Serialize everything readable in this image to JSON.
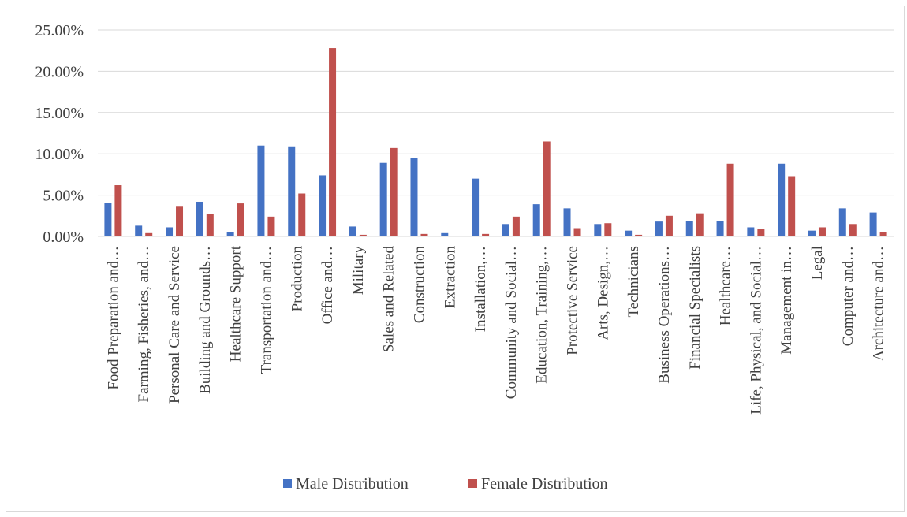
{
  "chart_data": {
    "type": "bar",
    "title": "",
    "xlabel": "",
    "ylabel": "",
    "ylim": [
      0,
      0.25
    ],
    "y_ticks": [
      "0.00%",
      "5.00%",
      "10.00%",
      "15.00%",
      "20.00%",
      "25.00%"
    ],
    "grid": true,
    "legend_position": "bottom",
    "categories": [
      "Food Preparation and…",
      "Farming, Fisheries, and…",
      "Personal Care and Service",
      "Building and Grounds…",
      "Healthcare Support",
      "Transportation and…",
      "Production",
      "Office and…",
      "Military",
      "Sales and Related",
      "Construction",
      "Extraction",
      "Installation,…",
      "Community and Social…",
      "Education, Training,…",
      "Protective Service",
      "Arts, Design,…",
      "Technicians",
      "Business Operations…",
      "Financial Specialists",
      "Healthcare…",
      "Life, Physical, and Social…",
      "Management in…",
      "Legal",
      "Computer and…",
      "Architecture and…"
    ],
    "series": [
      {
        "name": "Male Distribution",
        "color": "#4472C4",
        "values": [
          0.041,
          0.013,
          0.011,
          0.042,
          0.005,
          0.11,
          0.109,
          0.074,
          0.012,
          0.089,
          0.095,
          0.004,
          0.07,
          0.015,
          0.039,
          0.034,
          0.015,
          0.007,
          0.018,
          0.019,
          0.019,
          0.011,
          0.088,
          0.007,
          0.034,
          0.029
        ]
      },
      {
        "name": "Female Distribution",
        "color": "#C0504D",
        "values": [
          0.062,
          0.004,
          0.036,
          0.027,
          0.04,
          0.024,
          0.052,
          0.228,
          0.002,
          0.107,
          0.003,
          0.0,
          0.003,
          0.024,
          0.115,
          0.01,
          0.016,
          0.002,
          0.025,
          0.028,
          0.088,
          0.009,
          0.073,
          0.011,
          0.015,
          0.005
        ]
      }
    ]
  }
}
